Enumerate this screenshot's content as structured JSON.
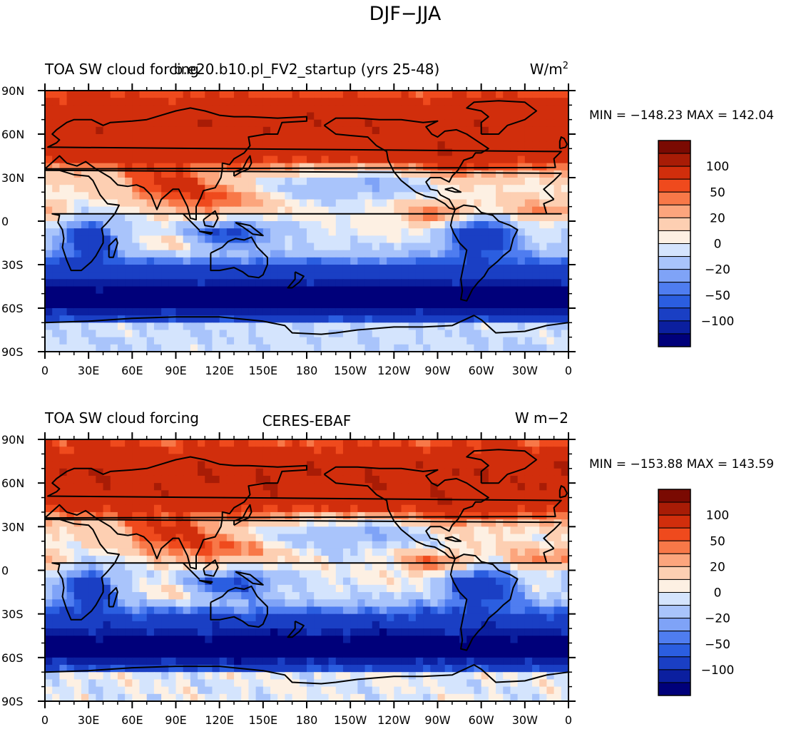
{
  "title": "DJF−JJA",
  "colorbar": {
    "colors": [
      "#00007a",
      "#0b1f9f",
      "#1a3fc4",
      "#2b5ee0",
      "#4f7df0",
      "#7fa3f7",
      "#a9c4fb",
      "#d4e4fd",
      "#fdf0e3",
      "#fdcfb2",
      "#fca57d",
      "#f87848",
      "#ef4a1d",
      "#d12e0c",
      "#a81c06",
      "#7a0a02"
    ],
    "labels": [
      "100",
      "50",
      "20",
      "0",
      "−20",
      "−50",
      "−100"
    ]
  },
  "x_tick_labels": [
    "0",
    "30E",
    "60E",
    "90E",
    "120E",
    "150E",
    "180",
    "150W",
    "120W",
    "90W",
    "60W",
    "30W",
    "0"
  ],
  "y_tick_labels": [
    "90N",
    "60N",
    "30N",
    "0",
    "30S",
    "60S",
    "90S"
  ],
  "chart_data": [
    {
      "type": "heatmap",
      "left_title": "TOA SW cloud forcing",
      "center_title": "b.e20.b10.pl_FV2_startup (yrs 25-48)",
      "units": "W/m",
      "units_superscript": "2",
      "min_max": "MIN = −148.23  MAX = 142.04",
      "min": -148.23,
      "max": 142.04,
      "xlim": [
        0,
        360
      ],
      "ylim": [
        -90,
        90
      ],
      "contour_levels": [
        -120,
        -100,
        -80,
        -60,
        -50,
        -40,
        -30,
        -20,
        -10,
        0,
        10,
        20,
        30,
        40,
        50,
        60,
        80,
        100,
        120
      ]
    },
    {
      "type": "heatmap",
      "left_title": "TOA SW cloud forcing",
      "center_title": "CERES-EBAF",
      "units": "W m−2",
      "units_superscript": "",
      "min_max": "MIN = −153.88  MAX = 143.59",
      "min": -153.88,
      "max": 143.59,
      "xlim": [
        0,
        360
      ],
      "ylim": [
        -90,
        90
      ],
      "contour_levels": [
        -120,
        -100,
        -80,
        -60,
        -50,
        -40,
        -30,
        -20,
        -10,
        0,
        10,
        20,
        30,
        40,
        50,
        60,
        80,
        100,
        120
      ]
    }
  ]
}
